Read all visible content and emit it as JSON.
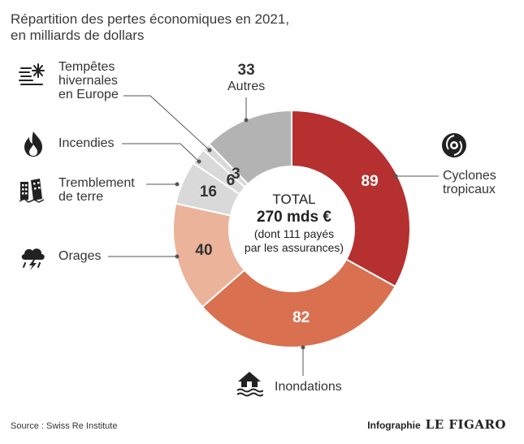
{
  "title_line1": "Répartition des pertes économiques en 2021,",
  "title_line2": "en milliards de dollars",
  "source": "Source : Swiss Re Institute",
  "credit_label": "Infographie",
  "credit_brand": "LE FIGARO",
  "center": {
    "line1": "TOTAL",
    "line2": "270 mds €",
    "line3": "(dont 111 payés",
    "line4": "par les assurances)"
  },
  "labels": {
    "tempetes_1": "Tempêtes",
    "tempetes_2": "hivernales",
    "tempetes_3": "en Europe",
    "autres": "Autres",
    "autres_value": "33",
    "incendies": "Incendies",
    "tremblement_1": "Tremblement",
    "tremblement_2": "de terre",
    "orages": "Orages",
    "cyclones_1": "Cyclones",
    "cyclones_2": "tropicaux",
    "inondations": "Inondations"
  },
  "icons": [
    "winter-storm-icon",
    "fire-icon",
    "earthquake-icon",
    "storm-cloud-icon",
    "cyclone-icon",
    "flood-house-icon"
  ],
  "chart_data": {
    "type": "pie",
    "donut": true,
    "categories": [
      "Cyclones tropicaux",
      "Inondations",
      "Orages",
      "Tremblement de terre",
      "Incendies",
      "Tempêtes hivernales en Europe",
      "Autres"
    ],
    "values": [
      89,
      82,
      40,
      16,
      6,
      3,
      33
    ],
    "colors": [
      "#b5302f",
      "#d9704f",
      "#ebb39a",
      "#d9d9d9",
      "#d9d9d9",
      "#d9d9d9",
      "#b3b3b3"
    ],
    "value_text_colors": [
      "#ffffff",
      "#ffffff",
      "#333333",
      "#333333",
      "#333333",
      "#333333",
      "#333333"
    ]
  }
}
